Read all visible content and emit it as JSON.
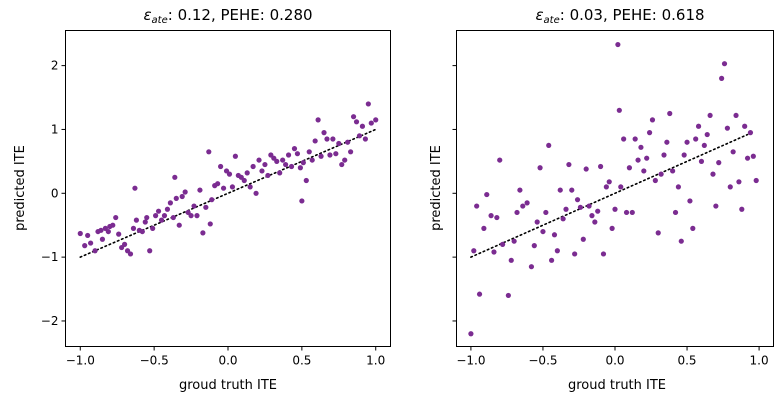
{
  "chart_data": [
    {
      "type": "scatter",
      "title_prefix": "ε",
      "title_sub": "ate",
      "title_rest": ": 0.12, PEHE: 0.280",
      "xlabel": "groud truth ITE",
      "ylabel": "predicted ITE",
      "xlim": [
        -1.1,
        1.1
      ],
      "ylim": [
        -2.4,
        2.55
      ],
      "xticks": [
        -1.0,
        -0.5,
        0.0,
        0.5,
        1.0
      ],
      "xtick_labels": [
        "−1.0",
        "−0.5",
        "0.0",
        "0.5",
        "1.0"
      ],
      "yticks": [
        -2,
        -1,
        0,
        1,
        2
      ],
      "ytick_labels": [
        "−2",
        "−1",
        "0",
        "1",
        "2"
      ],
      "show_ytick_labels": true,
      "grid": false,
      "point_color": "#7b2c91",
      "reference_line": {
        "x": [
          -1.0,
          1.0
        ],
        "y": [
          -1.0,
          1.0
        ],
        "style": "dotted",
        "color": "#000000"
      },
      "series": [
        {
          "x": [
            -1.0,
            -0.97,
            -0.95,
            -0.93,
            -0.9,
            -0.88,
            -0.86,
            -0.85,
            -0.83,
            -0.81,
            -0.8,
            -0.78,
            -0.76,
            -0.74,
            -0.72,
            -0.7,
            -0.68,
            -0.66,
            -0.64,
            -0.62,
            -0.6,
            -0.58,
            -0.56,
            -0.55,
            -0.53,
            -0.51,
            -0.49,
            -0.47,
            -0.45,
            -0.43,
            -0.41,
            -0.39,
            -0.37,
            -0.35,
            -0.33,
            -0.31,
            -0.29,
            -0.27,
            -0.25,
            -0.23,
            -0.21,
            -0.19,
            -0.17,
            -0.15,
            -0.13,
            -0.11,
            -0.09,
            -0.07,
            -0.05,
            -0.03,
            -0.01,
            0.01,
            0.03,
            0.05,
            0.07,
            0.09,
            0.11,
            0.13,
            0.15,
            0.17,
            0.19,
            0.21,
            0.23,
            0.25,
            0.27,
            0.29,
            0.31,
            0.33,
            0.35,
            0.37,
            0.39,
            0.41,
            0.43,
            0.45,
            0.47,
            0.49,
            0.51,
            0.53,
            0.55,
            0.57,
            0.59,
            0.61,
            0.63,
            0.65,
            0.67,
            0.69,
            0.71,
            0.73,
            0.75,
            0.77,
            0.79,
            0.81,
            0.83,
            0.85,
            0.87,
            0.89,
            0.91,
            0.93,
            0.95,
            0.97,
            1.0,
            -0.63,
            -0.36,
            -0.12,
            0.5
          ],
          "y": [
            -0.63,
            -0.82,
            -0.66,
            -0.78,
            -0.9,
            -0.6,
            -0.58,
            -0.72,
            -0.55,
            -0.6,
            -0.52,
            -0.5,
            -0.38,
            -0.64,
            -0.85,
            -0.8,
            -0.9,
            -0.95,
            -0.55,
            -0.42,
            -0.58,
            -0.6,
            -0.45,
            -0.38,
            -0.9,
            -0.55,
            -0.35,
            -0.28,
            -0.42,
            -0.35,
            -0.25,
            -0.15,
            -0.38,
            -0.08,
            -0.5,
            -0.05,
            0.02,
            -0.3,
            -0.35,
            -0.2,
            -0.35,
            0.05,
            -0.62,
            -0.22,
            0.65,
            -0.1,
            0.12,
            0.15,
            0.42,
            0.08,
            0.35,
            0.3,
            0.1,
            0.58,
            0.28,
            0.25,
            0.2,
            0.32,
            0.1,
            0.42,
            0.0,
            0.52,
            0.35,
            0.45,
            0.28,
            0.6,
            0.55,
            0.5,
            0.32,
            0.52,
            0.45,
            0.6,
            0.42,
            0.7,
            0.62,
            0.4,
            0.48,
            0.2,
            0.65,
            0.52,
            0.82,
            1.15,
            0.58,
            0.95,
            0.85,
            0.6,
            0.85,
            0.62,
            0.78,
            0.45,
            0.52,
            0.8,
            0.65,
            1.2,
            1.12,
            0.9,
            1.05,
            0.85,
            1.4,
            1.1,
            1.15,
            0.08,
            0.25,
            -0.48,
            -0.12
          ]
        }
      ]
    },
    {
      "type": "scatter",
      "title_prefix": "ε",
      "title_sub": "ate",
      "title_rest": ": 0.03, PEHE: 0.618",
      "xlabel": "groud truth ITE",
      "ylabel": "predicted ITE",
      "xlim": [
        -1.1,
        1.1
      ],
      "ylim": [
        -2.4,
        2.55
      ],
      "xticks": [
        -1.0,
        -0.5,
        0.0,
        0.5,
        1.0
      ],
      "xtick_labels": [
        "−1.0",
        "−0.5",
        "0.0",
        "0.5",
        "1.0"
      ],
      "yticks": [
        -2,
        -1,
        0,
        1,
        2
      ],
      "ytick_labels": [
        "",
        "",
        "",
        "",
        ""
      ],
      "show_ytick_labels": false,
      "grid": false,
      "point_color": "#7b2c91",
      "reference_line": {
        "x": [
          -1.0,
          0.92
        ],
        "y": [
          -1.0,
          0.92
        ],
        "style": "dotted",
        "color": "#000000"
      },
      "series": [
        {
          "x": [
            -1.0,
            -0.98,
            -0.96,
            -0.94,
            -0.91,
            -0.89,
            -0.86,
            -0.84,
            -0.82,
            -0.8,
            -0.78,
            -0.74,
            -0.72,
            -0.7,
            -0.68,
            -0.66,
            -0.64,
            -0.61,
            -0.58,
            -0.56,
            -0.54,
            -0.52,
            -0.5,
            -0.48,
            -0.46,
            -0.44,
            -0.42,
            -0.4,
            -0.38,
            -0.36,
            -0.34,
            -0.32,
            -0.3,
            -0.28,
            -0.26,
            -0.24,
            -0.22,
            -0.2,
            -0.18,
            -0.16,
            -0.14,
            -0.12,
            -0.1,
            -0.08,
            -0.06,
            -0.04,
            -0.02,
            0.0,
            0.02,
            0.04,
            0.06,
            0.08,
            0.1,
            0.12,
            0.14,
            0.16,
            0.18,
            0.2,
            0.22,
            0.24,
            0.26,
            0.28,
            0.3,
            0.32,
            0.34,
            0.36,
            0.38,
            0.4,
            0.42,
            0.44,
            0.46,
            0.48,
            0.5,
            0.52,
            0.54,
            0.56,
            0.58,
            0.6,
            0.62,
            0.64,
            0.66,
            0.68,
            0.7,
            0.72,
            0.74,
            0.76,
            0.78,
            0.8,
            0.82,
            0.84,
            0.86,
            0.88,
            0.9,
            0.92,
            0.94,
            0.96,
            0.98,
            0.03
          ],
          "y": [
            -2.2,
            -0.9,
            -0.2,
            -1.58,
            -0.55,
            -0.02,
            -0.35,
            -0.92,
            -0.38,
            0.52,
            -0.8,
            -1.6,
            -1.05,
            -0.75,
            -0.3,
            0.05,
            -0.2,
            -0.15,
            -1.15,
            -0.82,
            -0.45,
            0.4,
            -0.6,
            -0.3,
            0.75,
            -1.05,
            -0.65,
            -0.9,
            0.05,
            -0.4,
            -0.25,
            0.45,
            0.05,
            -0.95,
            -0.1,
            -0.22,
            -0.72,
            0.38,
            -0.2,
            -0.35,
            -0.45,
            -0.28,
            0.42,
            -0.95,
            0.1,
            0.18,
            -0.55,
            -0.25,
            2.33,
            0.1,
            0.85,
            -0.3,
            0.4,
            -0.3,
            0.85,
            0.52,
            0.72,
            0.35,
            0.55,
            0.95,
            1.15,
            0.2,
            -0.62,
            0.3,
            0.6,
            0.8,
            1.25,
            0.35,
            -0.3,
            0.1,
            -0.75,
            0.6,
            0.8,
            -0.12,
            -0.55,
            0.85,
            1.05,
            0.5,
            0.75,
            0.92,
            1.22,
            0.3,
            -0.2,
            0.48,
            1.8,
            2.03,
            1.02,
            0.1,
            0.65,
            1.22,
            0.18,
            -0.25,
            1.05,
            0.55,
            0.95,
            0.58,
            0.2,
            1.3
          ],
          "y_extra_note": ""
        }
      ]
    }
  ]
}
